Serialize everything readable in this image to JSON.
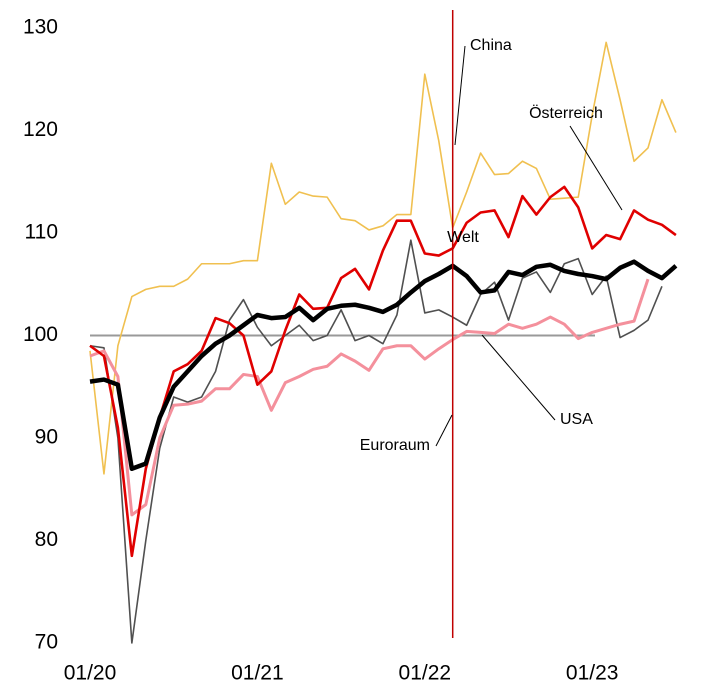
{
  "chart_data": {
    "type": "line",
    "categories": [
      "01/20",
      null,
      null,
      null,
      null,
      null,
      null,
      null,
      null,
      null,
      null,
      null,
      "01/21",
      null,
      null,
      null,
      null,
      null,
      null,
      null,
      null,
      null,
      null,
      null,
      "01/22",
      null,
      null,
      null,
      null,
      null,
      null,
      null,
      null,
      null,
      null,
      null,
      "01/23",
      null,
      null,
      null,
      null,
      null,
      null
    ],
    "series": [
      {
        "name": "China",
        "color": "#f0c050",
        "values": [
          98.5,
          86.5,
          99,
          103.8,
          104.5,
          104.8,
          104.8,
          105.5,
          107,
          107,
          107,
          107.3,
          107.3,
          116.8,
          112.8,
          114,
          113.6,
          113.5,
          111.4,
          111.2,
          110.3,
          110.7,
          111.8,
          111.8,
          125.5,
          119,
          110.5,
          114,
          117.8,
          115.7,
          115.8,
          117,
          116.3,
          113.3,
          113.4,
          113.5,
          121.5,
          128.6,
          123,
          117,
          118.3,
          123,
          119.8
        ]
      },
      {
        "name": "USA",
        "color": "#505050",
        "values": [
          99,
          98.8,
          90,
          70,
          80,
          89,
          94,
          93.5,
          94,
          96.5,
          101.5,
          103.5,
          100.8,
          99,
          100,
          101,
          99.5,
          100,
          102.5,
          99.5,
          100,
          99.2,
          102,
          109.3,
          102.2,
          102.5,
          101.8,
          101,
          104,
          105.2,
          101.5,
          105.6,
          106.2,
          104.2,
          107,
          107.5,
          104,
          105.8,
          99.8,
          100.5,
          101.5,
          104.8,
          null
        ]
      },
      {
        "name": "Euroraum",
        "color": "#f4909c",
        "values": [
          98,
          98.5,
          96,
          82.5,
          83.5,
          90,
          93.2,
          93.3,
          93.6,
          94.8,
          94.8,
          96.2,
          96,
          92.7,
          95.4,
          96,
          96.7,
          97,
          98.2,
          97.5,
          96.6,
          98.7,
          99,
          99,
          97.7,
          98.7,
          99.6,
          100.4,
          100.3,
          100.2,
          101.1,
          100.7,
          101.1,
          101.8,
          101.1,
          99.7,
          100.3,
          100.7,
          101.1,
          101.4,
          105.5,
          null,
          null
        ]
      },
      {
        "name": "Österreich",
        "color": "#e00000",
        "values": [
          99,
          98,
          91,
          78.5,
          87,
          92,
          96.5,
          97.2,
          98.5,
          101.7,
          101.2,
          100,
          95.2,
          96.5,
          100.5,
          104,
          102.6,
          102.7,
          105.6,
          106.5,
          104.5,
          108.3,
          111.2,
          111.2,
          108,
          107.8,
          108.5,
          111,
          112,
          112.2,
          109.6,
          113.6,
          111.8,
          113.5,
          114.5,
          112.5,
          108.5,
          109.8,
          109.4,
          112.2,
          111.3,
          110.8,
          109.8
        ]
      },
      {
        "name": "Welt",
        "color": "#000000",
        "values": [
          95.5,
          95.7,
          95.2,
          87,
          87.5,
          92,
          95,
          96.5,
          98,
          99.2,
          100,
          101,
          102,
          101.7,
          101.8,
          102.7,
          101.5,
          102.6,
          102.9,
          103,
          102.7,
          102.3,
          103,
          104.2,
          105.3,
          106,
          106.8,
          105.8,
          104.2,
          104.4,
          106.2,
          105.9,
          106.7,
          106.9,
          106.3,
          106,
          105.8,
          105.5,
          106.6,
          107.2,
          106.3,
          105.6,
          106.8
        ]
      }
    ],
    "ylim": [
      70,
      130
    ],
    "yticks": [
      70,
      80,
      90,
      100,
      110,
      120,
      130
    ],
    "reference_line": 100,
    "marker_line": {
      "category": 26,
      "color": "#c00000"
    }
  }
}
